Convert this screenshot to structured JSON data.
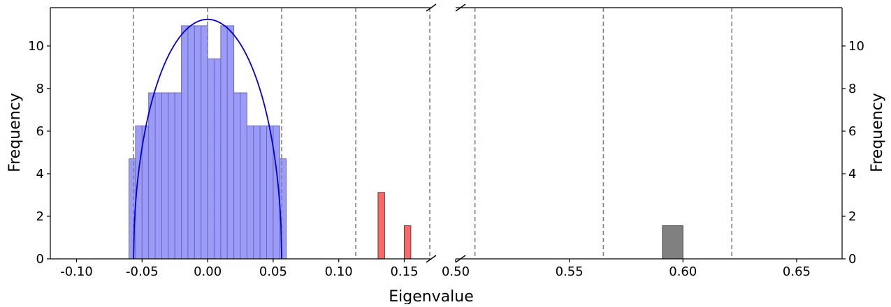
{
  "chart_data": [
    {
      "type": "bar",
      "panel": "left",
      "xlabel": "Eigenvalue",
      "ylabel": "Frequency",
      "xlim": [
        -0.12,
        0.17
      ],
      "ylim": [
        0,
        11.8
      ],
      "xticks": [
        -0.1,
        -0.05,
        0.0,
        0.05,
        0.1,
        0.15
      ],
      "xtick_labels": [
        "-0.10",
        "-0.05",
        "0.00",
        "0.05",
        "0.10",
        "0.15"
      ],
      "yticks": [
        0,
        2,
        4,
        6,
        8,
        10
      ],
      "ytick_labels": [
        "0",
        "2",
        "4",
        "6",
        "8",
        "10"
      ],
      "bin_width": 0.005,
      "series": [
        {
          "color": "#9a9aff",
          "bars": [
            {
              "x0": -0.06,
              "value": 4.7
            },
            {
              "x0": -0.055,
              "value": 6.25
            },
            {
              "x0": -0.05,
              "value": 6.25
            },
            {
              "x0": -0.045,
              "value": 7.8
            },
            {
              "x0": -0.04,
              "value": 7.8
            },
            {
              "x0": -0.035,
              "value": 7.8
            },
            {
              "x0": -0.03,
              "value": 7.8
            },
            {
              "x0": -0.025,
              "value": 7.8
            },
            {
              "x0": -0.02,
              "value": 10.95
            },
            {
              "x0": -0.015,
              "value": 10.95
            },
            {
              "x0": -0.01,
              "value": 10.95
            },
            {
              "x0": -0.005,
              "value": 10.95
            },
            {
              "x0": 0.0,
              "value": 9.4
            },
            {
              "x0": 0.005,
              "value": 9.4
            },
            {
              "x0": 0.01,
              "value": 10.95
            },
            {
              "x0": 0.015,
              "value": 10.95
            },
            {
              "x0": 0.02,
              "value": 7.8
            },
            {
              "x0": 0.025,
              "value": 7.8
            },
            {
              "x0": 0.03,
              "value": 6.25
            },
            {
              "x0": 0.035,
              "value": 6.25
            },
            {
              "x0": 0.04,
              "value": 6.25
            },
            {
              "x0": 0.045,
              "value": 6.25
            },
            {
              "x0": 0.05,
              "value": 6.25
            },
            {
              "x0": 0.055,
              "value": 4.7
            }
          ]
        },
        {
          "color": "#ff6666",
          "bars": [
            {
              "x0": 0.13,
              "value": 3.12
            },
            {
              "x0": 0.15,
              "value": 1.56
            }
          ]
        }
      ],
      "semicircle": {
        "color": "#0000dd",
        "center": 0.0,
        "radius": 0.0565,
        "peak": 11.25
      },
      "dashed_lines_x": [
        -0.0565,
        0.0,
        0.0565,
        0.113,
        0.1695
      ]
    },
    {
      "type": "bar",
      "panel": "right",
      "ylabel": "Frequency",
      "xlim": [
        0.5,
        0.67
      ],
      "ylim": [
        0,
        11.8
      ],
      "xticks": [
        0.5,
        0.55,
        0.6,
        0.65
      ],
      "xtick_labels": [
        "0.50",
        "0.55",
        "0.60",
        "0.65"
      ],
      "yticks": [
        0,
        2,
        4,
        6,
        8,
        10
      ],
      "ytick_labels": [
        "0",
        "2",
        "4",
        "6",
        "8",
        "10"
      ],
      "series": [
        {
          "color": "#808080",
          "bars": [
            {
              "x0": 0.591,
              "x1": 0.6,
              "value": 1.56
            }
          ]
        }
      ],
      "dashed_lines_x": [
        0.5085,
        0.565,
        0.6215
      ]
    }
  ]
}
